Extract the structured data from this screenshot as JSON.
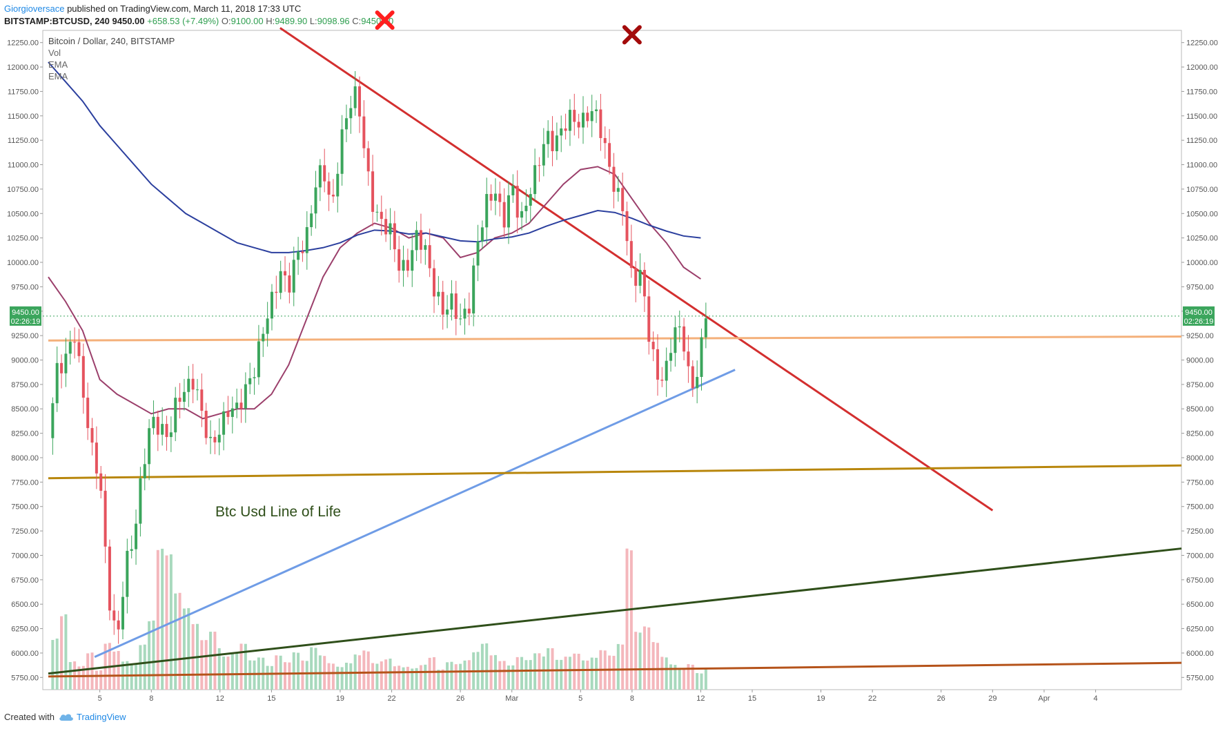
{
  "header": {
    "author": "Giorgioversace",
    "published": "published on TradingView.com, March 11, 2018 17:33 UTC",
    "symbol": "BITSTAMP:BTCUSD, 240",
    "last": "9450.00",
    "change": "+658.53 (+7.49%)",
    "o_label": "O:",
    "o_value": "9100.00",
    "h_label": "H:",
    "h_value": "9489.90",
    "l_label": "L:",
    "l_value": "9098.96",
    "c_label": "C:",
    "c_value": "9450.00"
  },
  "footer": {
    "created_with": "Created with",
    "brand": "TradingView"
  },
  "chart_data": {
    "type": "candlestick",
    "title": "Bitcoin / Dollar, 240, BITSTAMP",
    "legend": [
      "Vol",
      "EMA",
      "EMA"
    ],
    "annotation": "Btc Usd Line of Life",
    "price_label": "9450.00",
    "countdown": "02:26:19",
    "ylim": [
      5625,
      12375
    ],
    "yticks": [
      5750,
      6000,
      6250,
      6500,
      6750,
      7000,
      7250,
      7500,
      7750,
      8000,
      8250,
      8500,
      8750,
      9000,
      9250,
      9500,
      9750,
      10000,
      10250,
      10500,
      10750,
      11000,
      11250,
      11500,
      11750,
      12000,
      12250
    ],
    "xticks": [
      {
        "t": 3.0,
        "label": "5"
      },
      {
        "t": 6.0,
        "label": "8"
      },
      {
        "t": 10.0,
        "label": "12"
      },
      {
        "t": 13.0,
        "label": "15"
      },
      {
        "t": 17.0,
        "label": "19"
      },
      {
        "t": 20.0,
        "label": "22"
      },
      {
        "t": 24.0,
        "label": "26"
      },
      {
        "t": 27.0,
        "label": "Mar"
      },
      {
        "t": 31.0,
        "label": "5"
      },
      {
        "t": 34.0,
        "label": "8"
      },
      {
        "t": 38.0,
        "label": "12"
      },
      {
        "t": 41.0,
        "label": "15"
      },
      {
        "t": 45.0,
        "label": "19"
      },
      {
        "t": 48.0,
        "label": "22"
      },
      {
        "t": 52.0,
        "label": "26"
      },
      {
        "t": 55.0,
        "label": "29"
      },
      {
        "t": 58.0,
        "label": "Apr"
      },
      {
        "t": 61.0,
        "label": "4"
      }
    ],
    "xlim": [
      0,
      66
    ],
    "price_path": [
      [
        0.0,
        8200
      ],
      [
        0.5,
        8900
      ],
      [
        1.0,
        9000
      ],
      [
        1.5,
        9300
      ],
      [
        2.0,
        8700
      ],
      [
        2.5,
        8100
      ],
      [
        3.0,
        7800
      ],
      [
        3.5,
        6600
      ],
      [
        4.0,
        6100
      ],
      [
        4.5,
        6900
      ],
      [
        5.0,
        7200
      ],
      [
        5.5,
        7900
      ],
      [
        6.0,
        8400
      ],
      [
        6.5,
        8300
      ],
      [
        7.0,
        8200
      ],
      [
        7.5,
        8600
      ],
      [
        8.0,
        8700
      ],
      [
        8.5,
        8800
      ],
      [
        9.0,
        8400
      ],
      [
        9.5,
        8100
      ],
      [
        10.0,
        8300
      ],
      [
        10.5,
        8500
      ],
      [
        11.0,
        8500
      ],
      [
        11.5,
        8700
      ],
      [
        12.0,
        8900
      ],
      [
        12.5,
        9300
      ],
      [
        13.0,
        9600
      ],
      [
        13.5,
        9900
      ],
      [
        14.0,
        9750
      ],
      [
        14.5,
        10100
      ],
      [
        15.0,
        10200
      ],
      [
        15.5,
        10750
      ],
      [
        16.0,
        11000
      ],
      [
        16.5,
        10500
      ],
      [
        17.0,
        11200
      ],
      [
        17.5,
        11600
      ],
      [
        18.0,
        11750
      ],
      [
        18.5,
        11000
      ],
      [
        19.0,
        10500
      ],
      [
        19.5,
        10400
      ],
      [
        20.0,
        10300
      ],
      [
        20.5,
        9900
      ],
      [
        21.0,
        10000
      ],
      [
        21.5,
        10300
      ],
      [
        22.0,
        10100
      ],
      [
        22.5,
        9700
      ],
      [
        23.0,
        9500
      ],
      [
        23.5,
        9600
      ],
      [
        24.0,
        9400
      ],
      [
        24.5,
        9550
      ],
      [
        25.0,
        10200
      ],
      [
        25.5,
        10600
      ],
      [
        26.0,
        10750
      ],
      [
        26.5,
        10400
      ],
      [
        27.0,
        10800
      ],
      [
        27.5,
        10400
      ],
      [
        28.0,
        10700
      ],
      [
        28.5,
        11000
      ],
      [
        29.0,
        11300
      ],
      [
        29.5,
        11200
      ],
      [
        30.0,
        11400
      ],
      [
        30.5,
        11500
      ],
      [
        31.0,
        11400
      ],
      [
        31.5,
        11550
      ],
      [
        32.0,
        11500
      ],
      [
        32.5,
        11100
      ],
      [
        33.0,
        10750
      ],
      [
        33.5,
        10550
      ],
      [
        34.0,
        9800
      ],
      [
        34.5,
        9900
      ],
      [
        35.0,
        9250
      ],
      [
        35.5,
        8800
      ],
      [
        36.0,
        8900
      ],
      [
        36.5,
        9350
      ],
      [
        37.0,
        9200
      ],
      [
        37.5,
        8650
      ],
      [
        38.0,
        9100
      ],
      [
        38.3,
        9450
      ]
    ],
    "volumes": [
      0.5,
      0.7,
      0.25,
      0.2,
      0.3,
      0.15,
      0.35,
      0.28,
      0.2,
      0.18,
      0.3,
      0.45,
      0.9,
      0.85,
      0.6,
      0.5,
      0.4,
      0.3,
      0.35,
      0.25,
      0.2,
      0.22,
      0.28,
      0.18,
      0.2,
      0.15,
      0.22,
      0.18,
      0.25,
      0.2,
      0.3,
      0.25,
      0.2,
      0.18,
      0.22,
      0.3,
      0.35,
      0.25,
      0.28,
      0.3,
      0.22,
      0.2,
      0.18,
      0.2,
      0.25,
      0.15,
      0.2,
      0.18,
      0.2,
      0.25,
      0.3,
      0.22,
      0.18,
      0.15,
      0.2,
      0.18,
      0.22,
      0.2,
      0.25,
      0.18,
      0.2,
      0.22,
      0.18,
      0.2,
      0.25,
      0.22,
      0.3,
      0.95,
      0.4,
      0.45,
      0.35,
      0.25,
      0.2,
      0.18,
      0.22,
      0.15,
      0.2
    ],
    "ema_fast": [
      [
        0.0,
        9850
      ],
      [
        1.0,
        9600
      ],
      [
        2.0,
        9300
      ],
      [
        3.0,
        8800
      ],
      [
        4.0,
        8650
      ],
      [
        5.0,
        8550
      ],
      [
        6.0,
        8450
      ],
      [
        7.0,
        8500
      ],
      [
        8.0,
        8500
      ],
      [
        9.0,
        8400
      ],
      [
        10.0,
        8450
      ],
      [
        11.0,
        8500
      ],
      [
        12.0,
        8500
      ],
      [
        13.0,
        8650
      ],
      [
        14.0,
        8950
      ],
      [
        15.0,
        9400
      ],
      [
        16.0,
        9850
      ],
      [
        17.0,
        10150
      ],
      [
        18.0,
        10300
      ],
      [
        19.0,
        10400
      ],
      [
        20.0,
        10350
      ],
      [
        21.0,
        10250
      ],
      [
        22.0,
        10300
      ],
      [
        23.0,
        10250
      ],
      [
        24.0,
        10050
      ],
      [
        25.0,
        10100
      ],
      [
        26.0,
        10250
      ],
      [
        27.0,
        10300
      ],
      [
        28.0,
        10400
      ],
      [
        29.0,
        10600
      ],
      [
        30.0,
        10800
      ],
      [
        31.0,
        10950
      ],
      [
        32.0,
        10980
      ],
      [
        33.0,
        10900
      ],
      [
        34.0,
        10650
      ],
      [
        35.0,
        10400
      ],
      [
        36.0,
        10200
      ],
      [
        37.0,
        9950
      ],
      [
        38.0,
        9830
      ]
    ],
    "ema_slow": [
      [
        0.0,
        12050
      ],
      [
        1.0,
        11850
      ],
      [
        2.0,
        11650
      ],
      [
        3.0,
        11400
      ],
      [
        4.0,
        11200
      ],
      [
        5.0,
        11000
      ],
      [
        6.0,
        10800
      ],
      [
        7.0,
        10650
      ],
      [
        8.0,
        10500
      ],
      [
        9.0,
        10400
      ],
      [
        10.0,
        10300
      ],
      [
        11.0,
        10200
      ],
      [
        12.0,
        10150
      ],
      [
        13.0,
        10100
      ],
      [
        14.0,
        10100
      ],
      [
        15.0,
        10120
      ],
      [
        16.0,
        10150
      ],
      [
        17.0,
        10200
      ],
      [
        18.0,
        10280
      ],
      [
        19.0,
        10330
      ],
      [
        20.0,
        10320
      ],
      [
        21.0,
        10290
      ],
      [
        22.0,
        10300
      ],
      [
        23.0,
        10260
      ],
      [
        24.0,
        10220
      ],
      [
        25.0,
        10210
      ],
      [
        26.0,
        10240
      ],
      [
        27.0,
        10260
      ],
      [
        28.0,
        10300
      ],
      [
        29.0,
        10370
      ],
      [
        30.0,
        10430
      ],
      [
        31.0,
        10480
      ],
      [
        32.0,
        10530
      ],
      [
        33.0,
        10510
      ],
      [
        34.0,
        10450
      ],
      [
        35.0,
        10380
      ],
      [
        36.0,
        10320
      ],
      [
        37.0,
        10270
      ],
      [
        38.0,
        10250
      ]
    ],
    "trendlines": [
      {
        "name": "resistance",
        "color": "#d32f2f",
        "from": [
          13.5,
          12400
        ],
        "to": [
          55.0,
          7460
        ]
      },
      {
        "name": "support-diagonal",
        "color": "#6f9ce6",
        "from": [
          2.7,
          5960
        ],
        "to": [
          40.0,
          8900
        ]
      },
      {
        "name": "horizontal-9200",
        "color": "#f4b07a",
        "from": [
          0.0,
          9200
        ],
        "to": [
          66.0,
          9240
        ]
      },
      {
        "name": "line-of-life",
        "color": "#b8860b",
        "from": [
          0.0,
          7790
        ],
        "to": [
          66.0,
          7920
        ]
      },
      {
        "name": "long-term-green",
        "color": "#2f4f1a",
        "from": [
          0.0,
          5790
        ],
        "to": [
          66.0,
          7070
        ]
      },
      {
        "name": "bottom-brown",
        "color": "#b5531a",
        "from": [
          0.0,
          5760
        ],
        "to": [
          66.0,
          5900
        ]
      }
    ],
    "markers": [
      {
        "name": "x-marker-1",
        "t": 19.6,
        "price": 12480,
        "color": "#ff1f1f"
      },
      {
        "name": "x-marker-2",
        "t": 34.0,
        "price": 12330,
        "color": "#a30b0b"
      }
    ],
    "colors": {
      "up": "#3ba55c",
      "down": "#e5535e",
      "vol_up": "#a8d9bd",
      "vol_down": "#f4b7bc",
      "price_tag": "#3ba55c"
    }
  }
}
